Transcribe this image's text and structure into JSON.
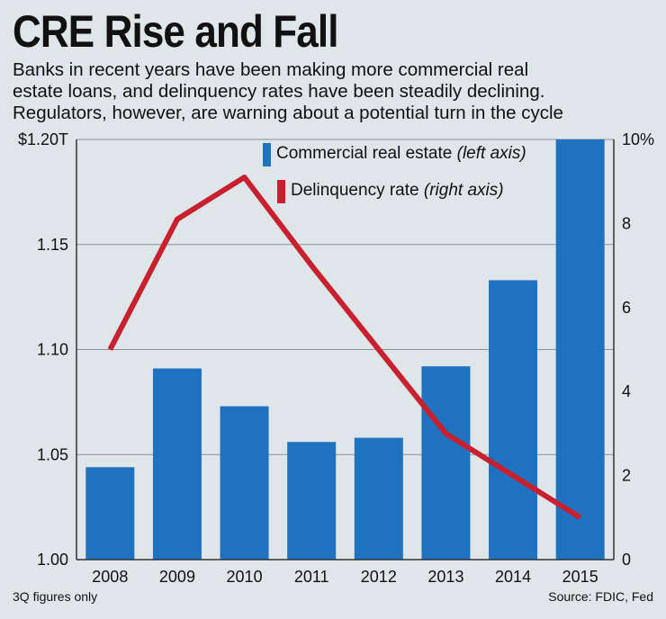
{
  "header": {
    "title": "CRE Rise and Fall",
    "subtitle_lines": [
      "Banks in recent years have been making more commercial real",
      "estate loans, and delinquency rates have been steadily declining.",
      "Regulators, however, are warning about a potential turn in the cycle"
    ]
  },
  "footer": {
    "note": "3Q figures only",
    "source": "Source: FDIC, Fed"
  },
  "colors": {
    "bar": "#1f72bf",
    "line": "#c8202f",
    "background": "#dfe6ea",
    "grid": "#8a8f94"
  },
  "chart_data": {
    "type": "bar+line",
    "categories": [
      "2008",
      "2009",
      "2010",
      "2011",
      "2012",
      "2013",
      "2014",
      "2015"
    ],
    "series": [
      {
        "name": "Commercial real estate",
        "axis_note": "left axis",
        "type": "bar",
        "units": "trillions USD",
        "values": [
          1.044,
          1.091,
          1.073,
          1.056,
          1.058,
          1.092,
          1.133,
          1.2
        ]
      },
      {
        "name": "Delinquency rate",
        "axis_note": "right axis",
        "type": "line",
        "units": "percent",
        "values": [
          5.0,
          8.1,
          9.1,
          7.0,
          5.0,
          3.0,
          2.0,
          1.0
        ]
      }
    ],
    "left_axis": {
      "ylim": [
        1.0,
        1.2
      ],
      "ticks": [
        1.0,
        1.05,
        1.1,
        1.15,
        1.2
      ],
      "tick_labels": [
        "1.00",
        "1.05",
        "1.10",
        "1.15",
        "$1.20T"
      ]
    },
    "right_axis": {
      "ylim": [
        0,
        10
      ],
      "ticks": [
        0,
        2,
        4,
        6,
        8,
        10
      ],
      "tick_labels": [
        "0",
        "2",
        "4",
        "6",
        "8",
        "10%"
      ]
    },
    "grid": true,
    "legend_position": "top-center"
  }
}
